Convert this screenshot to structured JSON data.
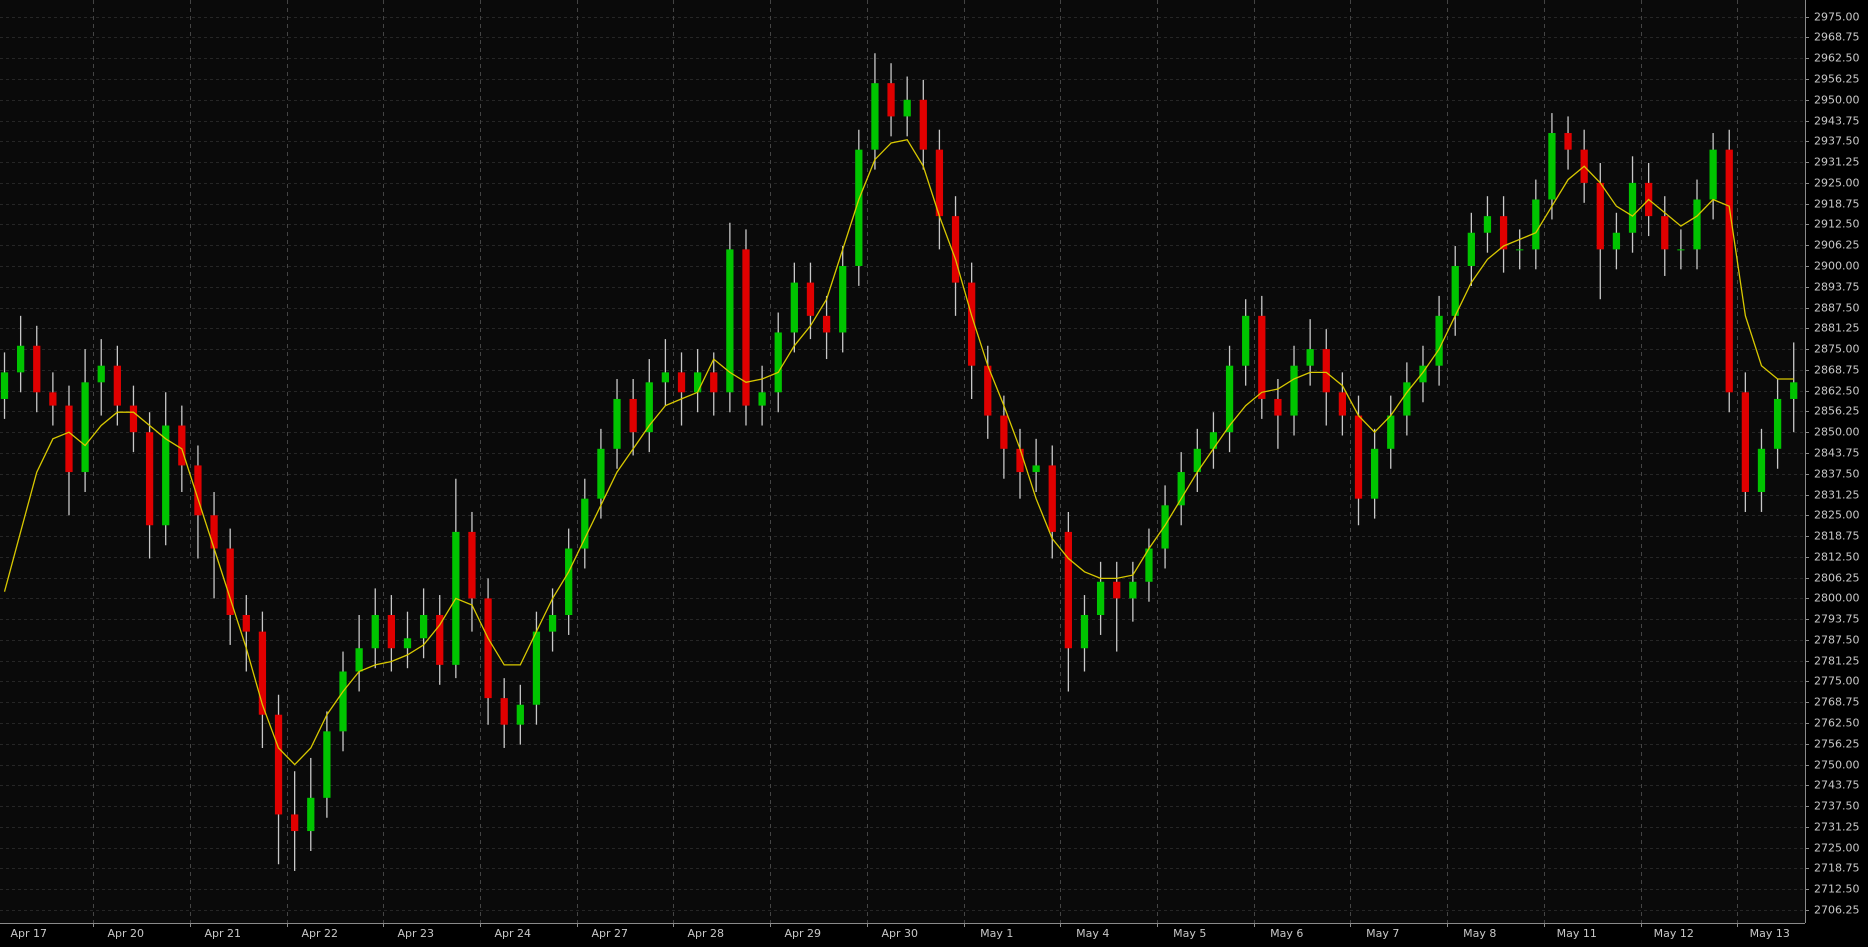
{
  "chart_data": {
    "type": "candlestick",
    "up_color": "#00c400",
    "down_color": "#e00000",
    "wick_color": "#c8c8c8",
    "grid": true,
    "xlim": [
      -0.28,
      111.7
    ],
    "ylim": [
      2702.34,
      2980.02
    ],
    "xticks": [
      {
        "value": 0,
        "label": "Apr 17"
      },
      {
        "value": 6,
        "label": "Apr 20"
      },
      {
        "value": 12,
        "label": "Apr 21"
      },
      {
        "value": 18,
        "label": "Apr 22"
      },
      {
        "value": 24,
        "label": "Apr 23"
      },
      {
        "value": 30,
        "label": "Apr 24"
      },
      {
        "value": 36,
        "label": "Apr 27"
      },
      {
        "value": 42,
        "label": "Apr 28"
      },
      {
        "value": 48,
        "label": "Apr 29"
      },
      {
        "value": 54,
        "label": "Apr 30"
      },
      {
        "value": 60,
        "label": "May 1"
      },
      {
        "value": 66,
        "label": "May 4"
      },
      {
        "value": 72,
        "label": "May 5"
      },
      {
        "value": 78,
        "label": "May 6"
      },
      {
        "value": 84,
        "label": "May 7"
      },
      {
        "value": 90,
        "label": "May 8"
      },
      {
        "value": 96,
        "label": "May 11"
      },
      {
        "value": 102,
        "label": "May 12"
      },
      {
        "value": 108,
        "label": "May 13"
      }
    ],
    "yticks": [
      {
        "value": 2706.25,
        "label": "2706.25"
      },
      {
        "value": 2712.5,
        "label": "2712.50"
      },
      {
        "value": 2718.75,
        "label": "2718.75"
      },
      {
        "value": 2725,
        "label": "2725.00"
      },
      {
        "value": 2731.25,
        "label": "2731.25"
      },
      {
        "value": 2737.5,
        "label": "2737.50"
      },
      {
        "value": 2743.75,
        "label": "2743.75"
      },
      {
        "value": 2750,
        "label": "2750.00"
      },
      {
        "value": 2756.25,
        "label": "2756.25"
      },
      {
        "value": 2762.5,
        "label": "2762.50"
      },
      {
        "value": 2768.75,
        "label": "2768.75"
      },
      {
        "value": 2775,
        "label": "2775.00"
      },
      {
        "value": 2781.25,
        "label": "2781.25"
      },
      {
        "value": 2787.5,
        "label": "2787.50"
      },
      {
        "value": 2793.75,
        "label": "2793.75"
      },
      {
        "value": 2800,
        "label": "2800.00"
      },
      {
        "value": 2806.25,
        "label": "2806.25"
      },
      {
        "value": 2812.5,
        "label": "2812.50"
      },
      {
        "value": 2818.75,
        "label": "2818.75"
      },
      {
        "value": 2825,
        "label": "2825.00"
      },
      {
        "value": 2831.25,
        "label": "2831.25"
      },
      {
        "value": 2837.5,
        "label": "2837.50"
      },
      {
        "value": 2843.75,
        "label": "2843.75"
      },
      {
        "value": 2850,
        "label": "2850.00"
      },
      {
        "value": 2856.25,
        "label": "2856.25"
      },
      {
        "value": 2862.5,
        "label": "2862.50"
      },
      {
        "value": 2868.75,
        "label": "2868.75"
      },
      {
        "value": 2875,
        "label": "2875.00"
      },
      {
        "value": 2881.25,
        "label": "2881.25"
      },
      {
        "value": 2887.5,
        "label": "2887.50"
      },
      {
        "value": 2893.75,
        "label": "2893.75"
      },
      {
        "value": 2900,
        "label": "2900.00"
      },
      {
        "value": 2906.25,
        "label": "2906.25"
      },
      {
        "value": 2912.5,
        "label": "2912.50"
      },
      {
        "value": 2918.75,
        "label": "2918.75"
      },
      {
        "value": 2925,
        "label": "2925.00"
      },
      {
        "value": 2931.25,
        "label": "2931.25"
      },
      {
        "value": 2937.5,
        "label": "2937.50"
      },
      {
        "value": 2943.75,
        "label": "2943.75"
      },
      {
        "value": 2950,
        "label": "2950.00"
      },
      {
        "value": 2956.25,
        "label": "2956.25"
      },
      {
        "value": 2962.5,
        "label": "2962.50"
      },
      {
        "value": 2968.75,
        "label": "2968.75"
      },
      {
        "value": 2975,
        "label": "2975.00"
      }
    ],
    "open": [
      2860,
      2868,
      2876,
      2862,
      2858,
      2838,
      2865,
      2870,
      2858,
      2850,
      2822,
      2852,
      2840,
      2825,
      2815,
      2795,
      2790,
      2765,
      2735,
      2730,
      2740,
      2760,
      2778,
      2785,
      2795,
      2785,
      2788,
      2795,
      2780,
      2820,
      2800,
      2770,
      2762,
      2768,
      2790,
      2795,
      2815,
      2830,
      2845,
      2860,
      2850,
      2865,
      2868,
      2862,
      2868,
      2862,
      2905,
      2858,
      2862,
      2880,
      2895,
      2885,
      2880,
      2900,
      2935,
      2955,
      2945,
      2950,
      2935,
      2915,
      2895,
      2870,
      2855,
      2845,
      2838,
      2840,
      2820,
      2785,
      2795,
      2805,
      2800,
      2805,
      2815,
      2828,
      2838,
      2845,
      2850,
      2870,
      2885,
      2860,
      2855,
      2870,
      2875,
      2862,
      2855,
      2830,
      2845,
      2855,
      2865,
      2870,
      2885,
      2900,
      2910,
      2915,
      2905,
      2905,
      2920,
      2940,
      2935,
      2925,
      2905,
      2910,
      2925,
      2915,
      2905,
      2905,
      2920,
      2935,
      2862,
      2832,
      2845,
      2860
    ],
    "high": [
      2874,
      2885,
      2882,
      2868,
      2864,
      2875,
      2878,
      2876,
      2864,
      2856,
      2862,
      2858,
      2846,
      2832,
      2821,
      2801,
      2796,
      2771,
      2748,
      2752,
      2766,
      2784,
      2795,
      2803,
      2801,
      2796,
      2803,
      2801,
      2836,
      2826,
      2806,
      2776,
      2774,
      2796,
      2803,
      2821,
      2836,
      2851,
      2866,
      2866,
      2872,
      2878,
      2874,
      2875,
      2874,
      2913,
      2911,
      2870,
      2886,
      2901,
      2901,
      2891,
      2906,
      2941,
      2964,
      2961,
      2957,
      2956,
      2941,
      2921,
      2901,
      2876,
      2861,
      2851,
      2848,
      2846,
      2826,
      2801,
      2811,
      2811,
      2811,
      2821,
      2834,
      2844,
      2851,
      2856,
      2876,
      2890,
      2891,
      2866,
      2876,
      2884,
      2881,
      2868,
      2861,
      2851,
      2861,
      2871,
      2876,
      2891,
      2906,
      2916,
      2921,
      2921,
      2911,
      2926,
      2946,
      2945,
      2941,
      2931,
      2916,
      2933,
      2931,
      2921,
      2911,
      2926,
      2940,
      2941,
      2868,
      2851,
      2866,
      2877
    ],
    "low": [
      2854,
      2862,
      2856,
      2852,
      2825,
      2832,
      2855,
      2852,
      2844,
      2812,
      2816,
      2832,
      2812,
      2800,
      2786,
      2778,
      2755,
      2720,
      2718,
      2724,
      2734,
      2754,
      2772,
      2779,
      2778,
      2779,
      2782,
      2774,
      2776,
      2790,
      2762,
      2755,
      2756,
      2762,
      2784,
      2789,
      2809,
      2824,
      2839,
      2843,
      2844,
      2858,
      2852,
      2856,
      2855,
      2856,
      2852,
      2852,
      2856,
      2874,
      2878,
      2872,
      2874,
      2894,
      2929,
      2939,
      2939,
      2929,
      2905,
      2885,
      2860,
      2848,
      2836,
      2830,
      2832,
      2812,
      2772,
      2778,
      2789,
      2784,
      2793,
      2799,
      2809,
      2822,
      2832,
      2839,
      2844,
      2864,
      2854,
      2845,
      2849,
      2864,
      2852,
      2849,
      2822,
      2824,
      2839,
      2849,
      2859,
      2864,
      2879,
      2894,
      2904,
      2898,
      2899,
      2899,
      2914,
      2929,
      2919,
      2890,
      2899,
      2904,
      2909,
      2897,
      2899,
      2899,
      2914,
      2856,
      2826,
      2826,
      2839,
      2850
    ],
    "close": [
      2868,
      2876,
      2862,
      2858,
      2838,
      2865,
      2870,
      2858,
      2850,
      2822,
      2852,
      2840,
      2825,
      2815,
      2795,
      2790,
      2765,
      2735,
      2730,
      2740,
      2760,
      2778,
      2785,
      2795,
      2785,
      2788,
      2795,
      2780,
      2820,
      2800,
      2770,
      2762,
      2768,
      2790,
      2795,
      2815,
      2830,
      2845,
      2860,
      2850,
      2865,
      2868,
      2862,
      2868,
      2862,
      2905,
      2858,
      2862,
      2880,
      2895,
      2885,
      2880,
      2900,
      2935,
      2955,
      2945,
      2950,
      2935,
      2915,
      2895,
      2870,
      2855,
      2845,
      2838,
      2840,
      2820,
      2785,
      2795,
      2805,
      2800,
      2805,
      2815,
      2828,
      2838,
      2845,
      2850,
      2870,
      2885,
      2860,
      2855,
      2870,
      2875,
      2862,
      2855,
      2830,
      2845,
      2855,
      2865,
      2870,
      2885,
      2900,
      2910,
      2915,
      2905,
      2905,
      2920,
      2940,
      2935,
      2925,
      2905,
      2910,
      2925,
      2915,
      2905,
      2905,
      2920,
      2935,
      2862,
      2832,
      2845,
      2860,
      2865
    ],
    "moving_average": {
      "color": "#d8c800",
      "values": [
        2802,
        2820,
        2838,
        2848,
        2850,
        2846,
        2852,
        2856,
        2856,
        2852,
        2848,
        2845,
        2830,
        2815,
        2800,
        2785,
        2768,
        2755,
        2750,
        2755,
        2765,
        2772,
        2778,
        2780,
        2781,
        2783,
        2786,
        2792,
        2800,
        2798,
        2788,
        2780,
        2780,
        2790,
        2800,
        2808,
        2818,
        2828,
        2838,
        2845,
        2852,
        2858,
        2860,
        2862,
        2872,
        2868,
        2865,
        2866,
        2868,
        2876,
        2882,
        2890,
        2905,
        2920,
        2932,
        2937,
        2938,
        2930,
        2915,
        2902,
        2885,
        2870,
        2858,
        2845,
        2830,
        2818,
        2812,
        2808,
        2806,
        2806,
        2807,
        2815,
        2822,
        2830,
        2838,
        2845,
        2852,
        2858,
        2862,
        2863,
        2866,
        2868,
        2868,
        2864,
        2855,
        2850,
        2855,
        2862,
        2868,
        2875,
        2885,
        2895,
        2902,
        2906,
        2908,
        2910,
        2918,
        2926,
        2930,
        2925,
        2918,
        2915,
        2920,
        2916,
        2912,
        2915,
        2920,
        2918,
        2885,
        2870,
        2866,
        2866
      ]
    }
  }
}
